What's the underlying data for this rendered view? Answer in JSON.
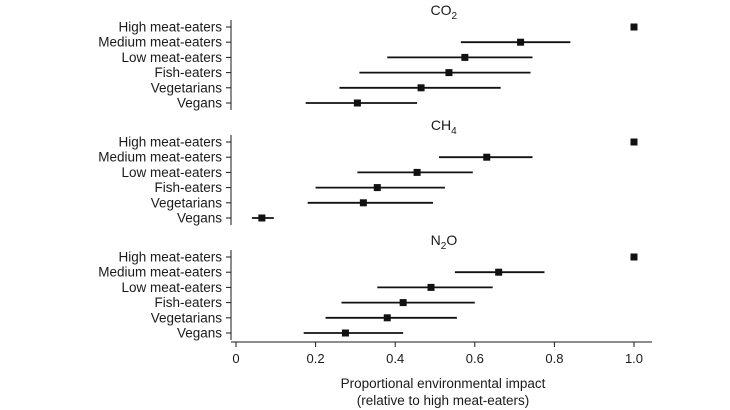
{
  "chart_data": {
    "type": "dot-errorbar",
    "categories": [
      "High meat-eaters",
      "Medium meat-eaters",
      "Low meat-eaters",
      "Fish-eaters",
      "Vegetarians",
      "Vegans"
    ],
    "xlim": [
      0,
      1.0
    ],
    "xticks": [
      "0",
      "0.2",
      "0.4",
      "0.6",
      "0.8",
      "1.0"
    ],
    "xlabel_line1": "Proportional environmental impact",
    "xlabel_line2": "(relative to high meat-eaters)",
    "panels": [
      {
        "title_main": "CO",
        "title_sub": "2",
        "title_tail": "",
        "values": [
          1.0,
          0.715,
          0.575,
          0.535,
          0.465,
          0.305
        ],
        "low": [
          1.0,
          0.565,
          0.38,
          0.31,
          0.26,
          0.175
        ],
        "high": [
          1.0,
          0.84,
          0.745,
          0.74,
          0.665,
          0.455
        ]
      },
      {
        "title_main": "CH",
        "title_sub": "4",
        "title_tail": "",
        "values": [
          1.0,
          0.63,
          0.455,
          0.355,
          0.32,
          0.065
        ],
        "low": [
          1.0,
          0.51,
          0.305,
          0.2,
          0.18,
          0.04
        ],
        "high": [
          1.0,
          0.745,
          0.595,
          0.525,
          0.495,
          0.095
        ]
      },
      {
        "title_main": "N",
        "title_sub": "2",
        "title_tail": "O",
        "values": [
          1.0,
          0.66,
          0.49,
          0.42,
          0.38,
          0.275
        ],
        "low": [
          1.0,
          0.55,
          0.355,
          0.265,
          0.225,
          0.17
        ],
        "high": [
          1.0,
          0.775,
          0.645,
          0.6,
          0.555,
          0.42
        ]
      }
    ]
  }
}
